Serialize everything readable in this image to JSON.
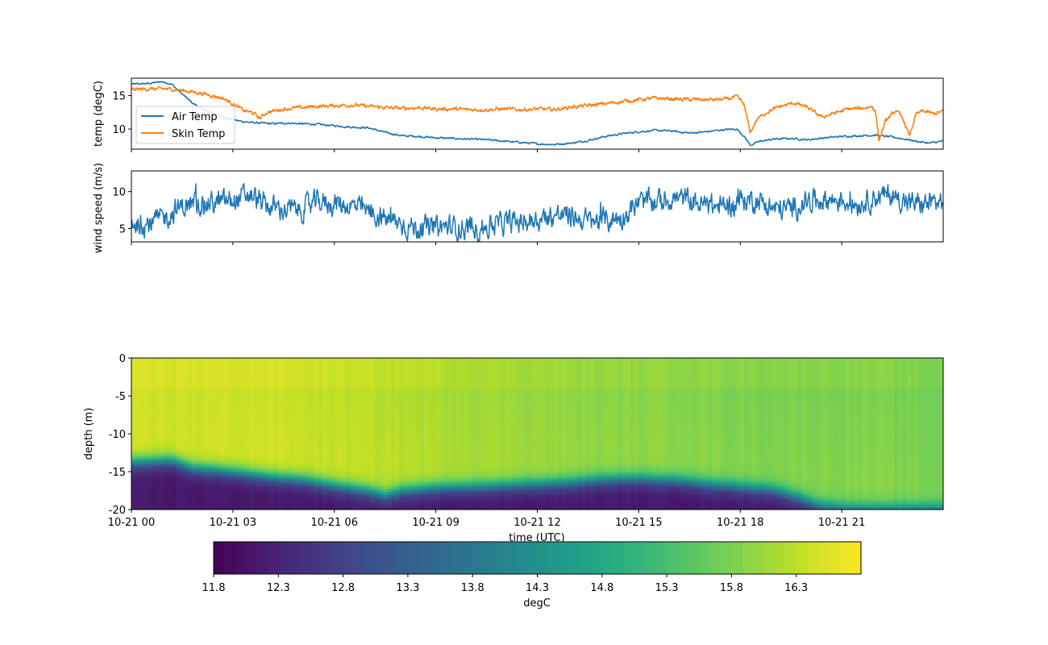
{
  "chart_data": [
    {
      "type": "line",
      "ylabel": "temp (degC)",
      "ylim": [
        7,
        17.6
      ],
      "yticks": [
        10,
        15
      ],
      "xlim_hours": [
        0,
        24
      ],
      "legend_position": "center-left",
      "series": [
        {
          "name": "Air Temp",
          "color": "#1f77b4",
          "x_hours": [
            0,
            0.5,
            0.9,
            1.2,
            1.4,
            1.6,
            1.8,
            2.0,
            2.2,
            2.4,
            2.6,
            2.8,
            3.0,
            3.2,
            3.5,
            3.8,
            4.2,
            4.6,
            5.0,
            5.5,
            6.0,
            6.5,
            7.0,
            7.5,
            8.0,
            8.5,
            9.0,
            9.5,
            10.0,
            10.5,
            11.0,
            11.5,
            12.0,
            12.5,
            13.0,
            13.5,
            14.0,
            14.5,
            15.0,
            15.5,
            16.0,
            16.5,
            17.0,
            17.5,
            17.9,
            18.1,
            18.3,
            18.6,
            19.0,
            19.5,
            20.0,
            20.5,
            21.0,
            21.5,
            22.0,
            22.5,
            23.0,
            23.3,
            23.6,
            24.0
          ],
          "values": [
            16.7,
            16.8,
            17.1,
            16.7,
            15.7,
            14.8,
            13.9,
            13.3,
            12.8,
            12.4,
            12.0,
            11.7,
            11.4,
            11.2,
            11.0,
            10.9,
            10.8,
            10.9,
            10.8,
            10.7,
            10.5,
            10.3,
            10.2,
            9.5,
            9.0,
            8.9,
            8.7,
            8.6,
            8.5,
            8.4,
            8.2,
            8.0,
            7.8,
            7.7,
            7.9,
            8.3,
            8.9,
            9.3,
            9.6,
            9.8,
            9.7,
            9.4,
            9.6,
            9.9,
            10.0,
            9.0,
            7.6,
            8.2,
            8.5,
            8.6,
            8.4,
            8.7,
            8.9,
            9.0,
            9.1,
            8.8,
            8.4,
            8.1,
            7.9,
            8.2
          ]
        },
        {
          "name": "Skin Temp",
          "color": "#ff7f0e",
          "x_hours": [
            0,
            0.5,
            1.0,
            1.3,
            1.6,
            2.0,
            2.4,
            2.7,
            3.0,
            3.3,
            3.6,
            3.8,
            4.0,
            4.5,
            5.0,
            5.5,
            6.0,
            6.5,
            7.0,
            7.5,
            8.0,
            8.5,
            9.0,
            9.5,
            10.0,
            10.5,
            11.0,
            11.5,
            12.0,
            12.5,
            13.0,
            13.5,
            14.0,
            14.5,
            15.0,
            15.5,
            16.0,
            16.5,
            17.0,
            17.5,
            17.9,
            18.1,
            18.3,
            18.5,
            18.8,
            19.2,
            19.6,
            20.0,
            20.4,
            20.8,
            21.2,
            21.6,
            21.9,
            22.0,
            22.1,
            22.3,
            22.6,
            22.8,
            23.0,
            23.2,
            23.4,
            23.7,
            24.0
          ],
          "values": [
            15.9,
            16.0,
            16.0,
            15.9,
            15.7,
            15.4,
            15.0,
            14.6,
            13.8,
            12.8,
            12.4,
            11.6,
            12.5,
            13.0,
            13.2,
            13.4,
            13.5,
            13.6,
            13.4,
            13.2,
            13.1,
            13.2,
            13.0,
            13.0,
            12.9,
            12.9,
            13.0,
            12.9,
            13.0,
            12.9,
            13.3,
            13.5,
            13.8,
            14.1,
            14.4,
            14.6,
            14.5,
            14.4,
            14.4,
            14.4,
            14.8,
            13.8,
            9.5,
            11.5,
            12.6,
            13.4,
            13.9,
            13.2,
            11.8,
            12.4,
            13.0,
            13.1,
            13.4,
            12.6,
            8.3,
            11.2,
            12.8,
            11.6,
            9.0,
            12.2,
            12.7,
            12.3,
            12.6
          ]
        }
      ]
    },
    {
      "type": "line",
      "ylabel": "wind speed (m/s)",
      "ylim": [
        3.2,
        12.8
      ],
      "yticks": [
        5,
        10
      ],
      "xlim_hours": [
        0,
        24
      ],
      "series": [
        {
          "name": "",
          "color": "#1f77b4",
          "x_hours": [
            0,
            0.5,
            1.0,
            1.5,
            2.0,
            2.5,
            3.0,
            3.5,
            4.0,
            4.5,
            5.0,
            5.5,
            6.0,
            6.5,
            7.0,
            7.5,
            8.0,
            8.5,
            9.0,
            9.5,
            10.0,
            10.5,
            11.0,
            11.5,
            12.0,
            12.5,
            13.0,
            13.5,
            14.0,
            14.5,
            15.0,
            15.5,
            16.0,
            16.5,
            17.0,
            17.5,
            18.0,
            18.5,
            19.0,
            19.5,
            20.0,
            20.5,
            21.0,
            21.5,
            22.0,
            22.5,
            23.0,
            23.5,
            24.0
          ],
          "values": [
            5.8,
            5.6,
            6.5,
            8.0,
            8.3,
            8.5,
            8.7,
            9.6,
            8.0,
            7.6,
            7.5,
            8.6,
            8.4,
            8.1,
            7.3,
            6.3,
            5.6,
            5.0,
            5.2,
            5.2,
            5.0,
            5.2,
            5.7,
            5.9,
            6.2,
            6.8,
            6.7,
            6.0,
            6.1,
            6.5,
            8.5,
            8.6,
            9.1,
            8.9,
            8.0,
            8.0,
            8.8,
            8.9,
            7.6,
            7.7,
            8.7,
            9.0,
            8.8,
            8.4,
            9.3,
            9.5,
            8.4,
            8.3,
            8.7
          ]
        }
      ]
    },
    {
      "type": "heatmap",
      "xlabel": "time (UTC)",
      "ylabel": "depth (m)",
      "ylim": [
        -20,
        0
      ],
      "yticks": [
        0,
        -5,
        -10,
        -15,
        -20
      ],
      "xlim_hours": [
        0,
        24
      ],
      "xticks_hours": [
        0,
        3,
        6,
        9,
        12,
        15,
        18,
        21
      ],
      "xtick_labels": [
        "10-21 00",
        "10-21 03",
        "10-21 06",
        "10-21 09",
        "10-21 12",
        "10-21 15",
        "10-21 18",
        "10-21 21"
      ],
      "colormap": "viridis",
      "thermocline_x_hours": [
        0,
        0.5,
        1.0,
        1.3,
        1.8,
        2.5,
        3.0,
        4.0,
        5.0,
        6.0,
        7.0,
        7.5,
        8.0,
        9.0,
        10.0,
        11.0,
        12.0,
        13.0,
        14.0,
        15.0,
        16.0,
        17.0,
        18.0,
        19.0,
        19.8,
        20.3,
        21.0,
        21.8,
        22.5,
        23.2,
        24.0
      ],
      "thermocline_depth": [
        -13.8,
        -13.7,
        -13.6,
        -13.7,
        -14.6,
        -14.8,
        -15.1,
        -15.7,
        -16.1,
        -16.9,
        -17.6,
        -18.2,
        -17.6,
        -17.2,
        -17.1,
        -16.9,
        -16.7,
        -16.5,
        -16.1,
        -16.0,
        -16.2,
        -16.7,
        -17.1,
        -17.5,
        -18.6,
        -19.5,
        -19.9,
        -20.0,
        -20.0,
        -20.0,
        -20.0
      ],
      "surface_temp_degC": [
        16.5,
        16.5,
        16.5,
        16.4,
        16.3,
        16.2,
        16.1,
        16.0,
        16.0,
        15.9,
        15.9,
        15.9,
        15.8
      ],
      "bottom_temp_degC": [
        12.0,
        12.0,
        12.0,
        12.0,
        12.0,
        12.0,
        12.0,
        12.0,
        12.0,
        12.0,
        12.0,
        12.0,
        12.0
      ],
      "colorbar": {
        "label": "degC",
        "range": [
          11.8,
          16.8
        ],
        "ticks": [
          11.8,
          12.3,
          12.8,
          13.3,
          13.8,
          14.3,
          14.8,
          15.3,
          15.8,
          16.3
        ],
        "tick_labels": [
          "11.8",
          "12.3",
          "12.8",
          "13.3",
          "13.8",
          "14.3",
          "14.8",
          "15.3",
          "15.8",
          "16.3"
        ]
      }
    }
  ]
}
